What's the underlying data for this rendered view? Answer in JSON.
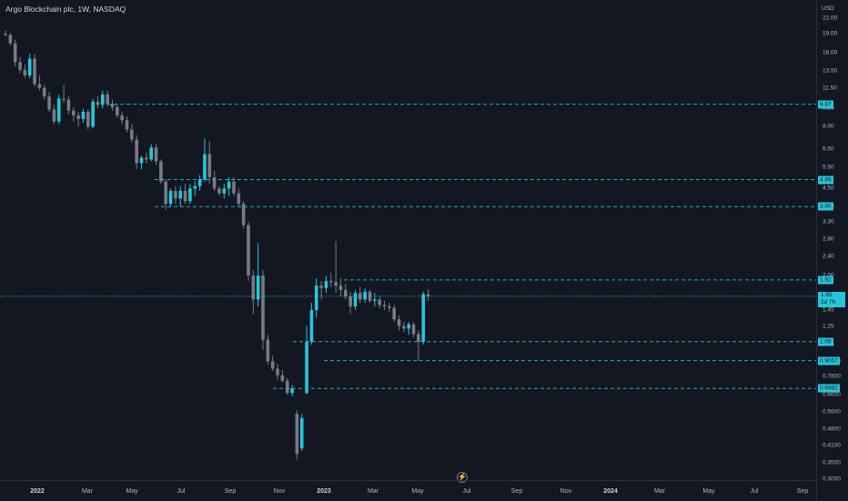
{
  "header": {
    "title": "Argo Blockchain plc, 1W, NASDAQ",
    "currency": "USD"
  },
  "colors": {
    "background": "#131722",
    "up": "#26c6da",
    "down": "#787b86",
    "level_line": "#26c6da"
  },
  "price_axis": {
    "ticks": [
      "22.00",
      "19.00",
      "16.00",
      "13.50",
      "11.50",
      "9.50",
      "8.00",
      "6.50",
      "5.50",
      "4.50",
      "3.80",
      "3.30",
      "2.80",
      "2.40",
      "2.00",
      "1.45",
      "1.25",
      "1.05",
      "0.9000",
      "0.7800",
      "0.6600",
      "0.5600",
      "0.4800",
      "0.4100",
      "0.3500",
      "0.3000"
    ],
    "level_labels": [
      "9.87",
      "4.89",
      "3.80",
      "1.92",
      "1.08",
      "0.9057",
      "0.6982"
    ],
    "current_price": "1.65",
    "countdown": "2d 7h"
  },
  "time_axis": {
    "labels": [
      {
        "text": "2022",
        "bold": true
      },
      {
        "text": "Mar",
        "bold": false
      },
      {
        "text": "May",
        "bold": false
      },
      {
        "text": "Jul",
        "bold": false
      },
      {
        "text": "Sep",
        "bold": false
      },
      {
        "text": "Nov",
        "bold": false
      },
      {
        "text": "2023",
        "bold": true
      },
      {
        "text": "Mar",
        "bold": false
      },
      {
        "text": "May",
        "bold": false
      },
      {
        "text": "Jul",
        "bold": false
      },
      {
        "text": "Sep",
        "bold": false
      },
      {
        "text": "Nov",
        "bold": false
      },
      {
        "text": "2024",
        "bold": true
      },
      {
        "text": "Mar",
        "bold": false
      },
      {
        "text": "May",
        "bold": false
      },
      {
        "text": "Jul",
        "bold": false
      },
      {
        "text": "Sep",
        "bold": false
      }
    ]
  },
  "chart_data": {
    "type": "candlestick",
    "scale": "log",
    "horizontal_levels": [
      9.87,
      4.89,
      3.8,
      1.92,
      1.08,
      0.9057,
      0.6982
    ],
    "current_price": 1.65,
    "candles": [
      {
        "o": 19.0,
        "h": 19.6,
        "l": 18.6,
        "c": 18.8
      },
      {
        "o": 18.8,
        "h": 19.1,
        "l": 17.0,
        "c": 17.4
      },
      {
        "o": 17.4,
        "h": 18.0,
        "l": 14.0,
        "c": 14.6
      },
      {
        "o": 14.6,
        "h": 15.3,
        "l": 13.2,
        "c": 13.6
      },
      {
        "o": 13.6,
        "h": 14.3,
        "l": 12.6,
        "c": 12.9
      },
      {
        "o": 12.9,
        "h": 15.8,
        "l": 12.6,
        "c": 15.1
      },
      {
        "o": 15.1,
        "h": 15.7,
        "l": 11.6,
        "c": 11.9
      },
      {
        "o": 11.9,
        "h": 12.9,
        "l": 11.2,
        "c": 11.5
      },
      {
        "o": 11.5,
        "h": 11.8,
        "l": 10.3,
        "c": 10.6
      },
      {
        "o": 10.6,
        "h": 11.1,
        "l": 9.2,
        "c": 9.4
      },
      {
        "o": 9.4,
        "h": 9.8,
        "l": 8.2,
        "c": 8.4
      },
      {
        "o": 8.4,
        "h": 10.8,
        "l": 8.2,
        "c": 10.4
      },
      {
        "o": 10.4,
        "h": 11.8,
        "l": 10.0,
        "c": 10.3
      },
      {
        "o": 10.3,
        "h": 10.6,
        "l": 9.0,
        "c": 9.3
      },
      {
        "o": 9.3,
        "h": 9.6,
        "l": 8.4,
        "c": 8.9
      },
      {
        "o": 8.9,
        "h": 9.2,
        "l": 8.0,
        "c": 8.6
      },
      {
        "o": 8.6,
        "h": 9.5,
        "l": 8.3,
        "c": 9.2
      },
      {
        "o": 9.2,
        "h": 9.4,
        "l": 7.8,
        "c": 8.0
      },
      {
        "o": 8.0,
        "h": 10.4,
        "l": 7.9,
        "c": 10.1
      },
      {
        "o": 10.1,
        "h": 10.6,
        "l": 9.5,
        "c": 9.8
      },
      {
        "o": 9.8,
        "h": 11.2,
        "l": 9.5,
        "c": 10.8
      },
      {
        "o": 10.8,
        "h": 11.2,
        "l": 9.7,
        "c": 9.9
      },
      {
        "o": 9.9,
        "h": 10.3,
        "l": 9.3,
        "c": 9.6
      },
      {
        "o": 9.6,
        "h": 9.9,
        "l": 8.7,
        "c": 8.9
      },
      {
        "o": 8.9,
        "h": 9.2,
        "l": 8.2,
        "c": 8.5
      },
      {
        "o": 8.5,
        "h": 8.8,
        "l": 7.6,
        "c": 7.8
      },
      {
        "o": 7.8,
        "h": 8.2,
        "l": 6.9,
        "c": 7.1
      },
      {
        "o": 7.1,
        "h": 7.4,
        "l": 5.4,
        "c": 5.7
      },
      {
        "o": 5.7,
        "h": 6.1,
        "l": 5.4,
        "c": 6.0
      },
      {
        "o": 6.0,
        "h": 6.3,
        "l": 5.7,
        "c": 5.9
      },
      {
        "o": 5.9,
        "h": 6.8,
        "l": 5.8,
        "c": 6.6
      },
      {
        "o": 6.6,
        "h": 6.8,
        "l": 5.6,
        "c": 5.8
      },
      {
        "o": 5.8,
        "h": 5.9,
        "l": 4.7,
        "c": 4.8
      },
      {
        "o": 4.8,
        "h": 4.9,
        "l": 3.7,
        "c": 3.9
      },
      {
        "o": 3.9,
        "h": 4.5,
        "l": 3.8,
        "c": 4.4
      },
      {
        "o": 4.4,
        "h": 4.6,
        "l": 3.9,
        "c": 4.1
      },
      {
        "o": 4.1,
        "h": 4.6,
        "l": 3.8,
        "c": 4.4
      },
      {
        "o": 4.4,
        "h": 4.7,
        "l": 3.9,
        "c": 4.0
      },
      {
        "o": 4.0,
        "h": 4.7,
        "l": 3.9,
        "c": 4.5
      },
      {
        "o": 4.5,
        "h": 4.8,
        "l": 4.2,
        "c": 4.6
      },
      {
        "o": 4.6,
        "h": 5.1,
        "l": 4.4,
        "c": 4.9
      },
      {
        "o": 4.9,
        "h": 7.2,
        "l": 4.8,
        "c": 6.2
      },
      {
        "o": 6.2,
        "h": 7.0,
        "l": 4.7,
        "c": 5.0
      },
      {
        "o": 5.0,
        "h": 5.3,
        "l": 4.4,
        "c": 4.5
      },
      {
        "o": 4.5,
        "h": 4.6,
        "l": 4.2,
        "c": 4.3
      },
      {
        "o": 4.3,
        "h": 4.7,
        "l": 4.1,
        "c": 4.5
      },
      {
        "o": 4.5,
        "h": 5.0,
        "l": 4.2,
        "c": 4.8
      },
      {
        "o": 4.8,
        "h": 5.0,
        "l": 4.2,
        "c": 4.3
      },
      {
        "o": 4.3,
        "h": 4.5,
        "l": 3.8,
        "c": 3.9
      },
      {
        "o": 3.9,
        "h": 4.0,
        "l": 3.1,
        "c": 3.2
      },
      {
        "o": 3.2,
        "h": 3.3,
        "l": 1.9,
        "c": 2.0
      },
      {
        "o": 2.0,
        "h": 2.1,
        "l": 1.4,
        "c": 1.6
      },
      {
        "o": 1.6,
        "h": 2.7,
        "l": 1.5,
        "c": 2.0
      },
      {
        "o": 2.0,
        "h": 2.1,
        "l": 1.0,
        "c": 1.1
      },
      {
        "o": 1.1,
        "h": 1.15,
        "l": 0.87,
        "c": 0.9
      },
      {
        "o": 0.9,
        "h": 0.95,
        "l": 0.82,
        "c": 0.84
      },
      {
        "o": 0.84,
        "h": 0.88,
        "l": 0.76,
        "c": 0.79
      },
      {
        "o": 0.79,
        "h": 0.83,
        "l": 0.74,
        "c": 0.75
      },
      {
        "o": 0.75,
        "h": 0.77,
        "l": 0.66,
        "c": 0.67
      },
      {
        "o": 0.67,
        "h": 0.72,
        "l": 0.65,
        "c": 0.7
      },
      {
        "o": 0.55,
        "h": 0.57,
        "l": 0.36,
        "c": 0.38
      },
      {
        "o": 0.4,
        "h": 0.55,
        "l": 0.39,
        "c": 0.53
      },
      {
        "o": 0.67,
        "h": 1.25,
        "l": 0.66,
        "c": 1.08
      },
      {
        "o": 1.08,
        "h": 1.55,
        "l": 1.05,
        "c": 1.45
      },
      {
        "o": 1.45,
        "h": 1.95,
        "l": 1.35,
        "c": 1.82
      },
      {
        "o": 1.82,
        "h": 1.9,
        "l": 1.6,
        "c": 1.78
      },
      {
        "o": 1.78,
        "h": 2.0,
        "l": 1.7,
        "c": 1.9
      },
      {
        "o": 1.9,
        "h": 2.05,
        "l": 1.8,
        "c": 1.88
      },
      {
        "o": 1.88,
        "h": 2.75,
        "l": 1.7,
        "c": 1.82
      },
      {
        "o": 1.82,
        "h": 1.95,
        "l": 1.65,
        "c": 1.75
      },
      {
        "o": 1.75,
        "h": 1.85,
        "l": 1.6,
        "c": 1.65
      },
      {
        "o": 1.65,
        "h": 1.72,
        "l": 1.4,
        "c": 1.5
      },
      {
        "o": 1.5,
        "h": 1.75,
        "l": 1.45,
        "c": 1.7
      },
      {
        "o": 1.7,
        "h": 1.8,
        "l": 1.55,
        "c": 1.6
      },
      {
        "o": 1.6,
        "h": 1.78,
        "l": 1.55,
        "c": 1.72
      },
      {
        "o": 1.72,
        "h": 1.75,
        "l": 1.55,
        "c": 1.58
      },
      {
        "o": 1.58,
        "h": 1.7,
        "l": 1.5,
        "c": 1.6
      },
      {
        "o": 1.6,
        "h": 1.65,
        "l": 1.48,
        "c": 1.52
      },
      {
        "o": 1.52,
        "h": 1.58,
        "l": 1.45,
        "c": 1.5
      },
      {
        "o": 1.5,
        "h": 1.55,
        "l": 1.42,
        "c": 1.48
      },
      {
        "o": 1.48,
        "h": 1.52,
        "l": 1.3,
        "c": 1.33
      },
      {
        "o": 1.33,
        "h": 1.38,
        "l": 1.2,
        "c": 1.25
      },
      {
        "o": 1.25,
        "h": 1.3,
        "l": 1.18,
        "c": 1.22
      },
      {
        "o": 1.22,
        "h": 1.3,
        "l": 1.15,
        "c": 1.27
      },
      {
        "o": 1.27,
        "h": 1.3,
        "l": 1.12,
        "c": 1.16
      },
      {
        "o": 1.16,
        "h": 1.2,
        "l": 0.9,
        "c": 1.08
      },
      {
        "o": 1.08,
        "h": 1.72,
        "l": 1.05,
        "c": 1.68
      },
      {
        "o": 1.68,
        "h": 1.76,
        "l": 1.58,
        "c": 1.65
      }
    ]
  }
}
